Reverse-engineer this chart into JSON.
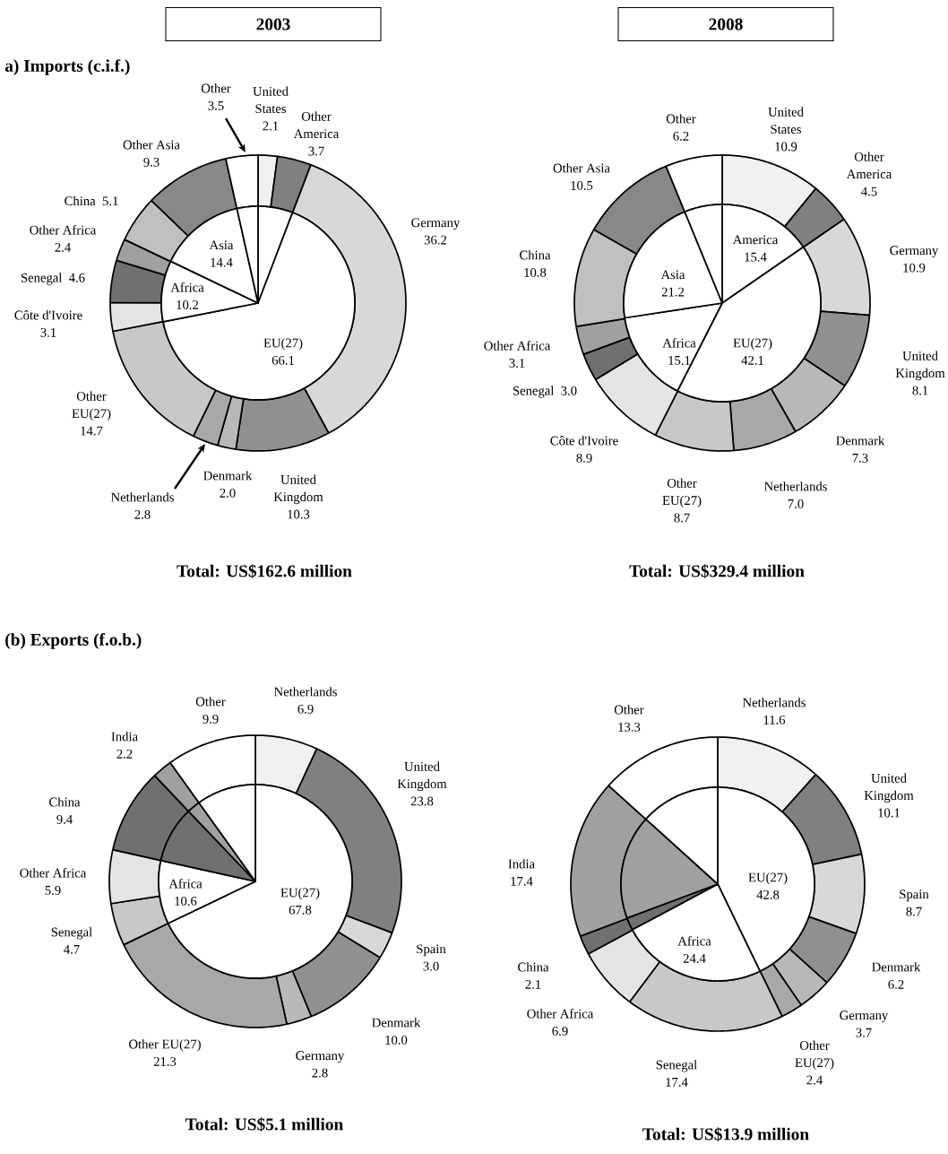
{
  "chart_data": [
    {
      "type": "donut",
      "title": "2003",
      "subtitle": "a) Imports (c.i.f.)",
      "categories": [
        "United States",
        "Other America",
        "Germany",
        "United Kingdom",
        "Denmark",
        "Netherlands",
        "Other EU(27)",
        "Côte d'Ivoire",
        "Senegal",
        "Other Africa",
        "China",
        "Other Asia",
        "Other"
      ],
      "values": [
        2.1,
        3.7,
        36.2,
        10.3,
        2.0,
        2.8,
        14.7,
        3.1,
        4.6,
        2.4,
        5.1,
        9.3,
        3.5
      ],
      "value_labels": [
        "2.1",
        "3.7",
        "36.2",
        "10.3",
        "2.0",
        "2.8",
        "14.7",
        "3.1",
        "4.6",
        "2.4",
        "5.1",
        "9.3",
        "3.5"
      ],
      "colors": [
        "#f0f0f0",
        "#808080",
        "#d8d8d8",
        "#909090",
        "#b8b8b8",
        "#a8a8a8",
        "#c8c8c8",
        "#e4e4e4",
        "#707070",
        "#a0a0a0",
        "#c0c0c0",
        "#888888",
        "#ffffff"
      ],
      "annotations": [
        "Total: US$162.6 million"
      ]
    },
    {
      "type": "pie",
      "categories": [
        null,
        "EU(27)",
        "Africa",
        "Asia",
        null
      ],
      "values": [
        5.8,
        66.1,
        10.2,
        14.4,
        3.5
      ],
      "colors": [
        "#ffffff",
        "#ffffff",
        "#ffffff",
        "#ffffff",
        "#ffffff"
      ],
      "value_labels": [
        null,
        "66.1",
        "10.2",
        "14.4",
        null
      ]
    },
    {
      "type": "donut",
      "title": "2008",
      "categories": [
        "United States",
        "Other America",
        "Germany",
        "United Kingdom",
        "Denmark",
        "Netherlands",
        "Other EU(27)",
        "Côte d'Ivoire",
        "Senegal",
        "Other Africa",
        "China",
        "Other Asia",
        "Other"
      ],
      "values": [
        10.9,
        4.5,
        10.9,
        8.1,
        7.3,
        7.0,
        8.7,
        8.9,
        3.0,
        3.1,
        10.8,
        10.5,
        6.2
      ],
      "value_labels": [
        "10.9",
        "4.5",
        "10.9",
        "8.1",
        "7.3",
        "7.0",
        "8.7",
        "8.9",
        "3.0",
        "3.1",
        "10.8",
        "10.5",
        "6.2"
      ],
      "colors": [
        "#f0f0f0",
        "#808080",
        "#d8d8d8",
        "#909090",
        "#b8b8b8",
        "#a8a8a8",
        "#c8c8c8",
        "#e4e4e4",
        "#707070",
        "#a0a0a0",
        "#c0c0c0",
        "#888888",
        "#ffffff"
      ],
      "annotations": [
        "Total: US$329.4 million"
      ]
    },
    {
      "type": "pie",
      "categories": [
        "America",
        "EU(27)",
        "Africa",
        "Asia",
        null
      ],
      "values": [
        15.4,
        42.1,
        15.1,
        21.2,
        6.2
      ],
      "colors": [
        "#ffffff",
        "#ffffff",
        "#ffffff",
        "#ffffff",
        "#ffffff"
      ],
      "value_labels": [
        "15.4",
        "42.1",
        "15.1",
        "21.2",
        null
      ]
    },
    {
      "type": "donut",
      "title": "(b) Exports (f.o.b.)",
      "categories": [
        "Netherlands",
        "United Kingdom",
        "Spain",
        "Denmark",
        "Germany",
        "Other EU(27)",
        "Senegal",
        "Other Africa",
        "China",
        "India",
        "Other"
      ],
      "values": [
        6.9,
        23.8,
        3.0,
        10.0,
        2.8,
        21.3,
        4.7,
        5.9,
        9.4,
        2.2,
        9.9
      ],
      "value_labels": [
        "6.9",
        "23.8",
        "3.0",
        "10.0",
        "2.8",
        "21.3",
        "4.7",
        "5.9",
        "9.4",
        "2.2",
        "9.9"
      ],
      "colors": [
        "#f0f0f0",
        "#808080",
        "#d8d8d8",
        "#909090",
        "#b8b8b8",
        "#a8a8a8",
        "#c8c8c8",
        "#e4e4e4",
        "#707070",
        "#a0a0a0",
        "#ffffff"
      ],
      "annotations": [
        "Total: US$5.1 million"
      ]
    },
    {
      "type": "pie",
      "categories": [
        "EU(27)",
        "Africa",
        null,
        null,
        null
      ],
      "values": [
        67.8,
        10.6,
        9.4,
        2.2,
        9.9
      ],
      "colors": [
        "#ffffff",
        "#ffffff",
        "#707070",
        "#a0a0a0",
        "#ffffff"
      ],
      "value_labels": [
        "67.8",
        "10.6",
        null,
        null,
        null
      ]
    },
    {
      "type": "donut",
      "categories": [
        "Netherlands",
        "United Kingdom",
        "Spain",
        "Denmark",
        "Germany",
        "Other EU(27)",
        "Senegal",
        "Other Africa",
        "China",
        "India",
        "Other"
      ],
      "values": [
        11.6,
        10.1,
        8.7,
        6.2,
        3.7,
        2.4,
        17.4,
        6.9,
        2.1,
        17.4,
        13.3
      ],
      "value_labels": [
        "11.6",
        "10.1",
        "8.7",
        "6.2",
        "3.7",
        "2.4",
        "17.4",
        "6.9",
        "2.1",
        "17.4",
        "13.3"
      ],
      "colors": [
        "#f0f0f0",
        "#808080",
        "#d8d8d8",
        "#909090",
        "#b8b8b8",
        "#a8a8a8",
        "#c8c8c8",
        "#e4e4e4",
        "#707070",
        "#a0a0a0",
        "#ffffff"
      ],
      "annotations": [
        "Total: US$13.9 million"
      ]
    },
    {
      "type": "pie",
      "categories": [
        "EU(27)",
        "Africa",
        null,
        null,
        null
      ],
      "values": [
        42.8,
        24.4,
        2.1,
        17.4,
        13.3
      ],
      "colors": [
        "#ffffff",
        "#ffffff",
        "#707070",
        "#a0a0a0",
        "#ffffff"
      ],
      "value_labels": [
        "42.8",
        "24.4",
        null,
        null,
        null
      ]
    }
  ]
}
